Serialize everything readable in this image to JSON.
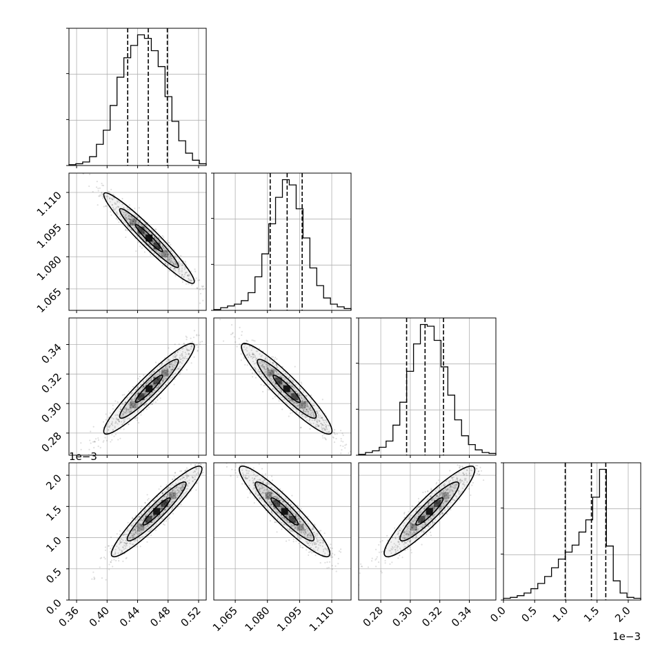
{
  "chart_data": {
    "type": "corner",
    "title": "",
    "parameters": [
      {
        "range": [
          0.35,
          0.53
        ],
        "ticks": [
          0.36,
          0.4,
          0.44,
          0.48,
          0.52
        ],
        "tick_labels": [
          "0.36",
          "0.40",
          "0.44",
          "0.48",
          "0.52"
        ],
        "offset_label": ""
      },
      {
        "range": [
          1.055,
          1.119
        ],
        "ticks": [
          1.065,
          1.08,
          1.095,
          1.11
        ],
        "tick_labels": [
          "1.065",
          "1.080",
          "1.095",
          "1.110"
        ],
        "offset_label": ""
      },
      {
        "range": [
          0.265,
          0.358
        ],
        "ticks": [
          0.28,
          0.3,
          0.32,
          0.34
        ],
        "tick_labels": [
          "0.28",
          "0.30",
          "0.32",
          "0.34"
        ],
        "offset_label": ""
      },
      {
        "range": [
          0.0,
          2.2
        ],
        "ticks": [
          0.0,
          0.5,
          1.0,
          1.5,
          2.0
        ],
        "tick_labels": [
          "0.0",
          "0.5",
          "1.0",
          "1.5",
          "2.0"
        ],
        "offset_label": "1e−3"
      }
    ],
    "marginals": [
      {
        "quantiles": [
          0.427,
          0.454,
          0.479
        ],
        "counts": [
          1,
          2,
          4,
          10,
          24,
          40,
          68,
          100,
          122,
          136,
          148,
          144,
          130,
          112,
          78,
          50,
          28,
          14,
          6,
          2
        ]
      },
      {
        "quantiles": [
          1.0813,
          1.0892,
          1.0962
        ],
        "counts": [
          1,
          3,
          5,
          7,
          11,
          20,
          38,
          64,
          98,
          128,
          148,
          142,
          115,
          82,
          48,
          28,
          14,
          7,
          4,
          2
        ]
      },
      {
        "quantiles": [
          0.2975,
          0.31,
          0.3225
        ],
        "counts": [
          1,
          3,
          5,
          9,
          16,
          34,
          60,
          95,
          126,
          148,
          146,
          130,
          100,
          68,
          40,
          22,
          12,
          6,
          3,
          2
        ]
      },
      {
        "quantiles": [
          0.99,
          1.41,
          1.64
        ],
        "counts": [
          2,
          3,
          5,
          8,
          13,
          19,
          27,
          37,
          47,
          55,
          63,
          78,
          92,
          118,
          150,
          62,
          22,
          8,
          3,
          2
        ]
      }
    ],
    "pairs": [
      {
        "x": 0,
        "y": 1,
        "center": [
          0.455,
          1.0887
        ],
        "rho": -0.96
      },
      {
        "x": 0,
        "y": 2,
        "center": [
          0.455,
          0.31
        ],
        "rho": 0.94
      },
      {
        "x": 1,
        "y": 2,
        "center": [
          1.089,
          0.31
        ],
        "rho": -0.93
      },
      {
        "x": 0,
        "y": 3,
        "center": [
          0.465,
          1.42
        ],
        "rho": 0.94
      },
      {
        "x": 1,
        "y": 3,
        "center": [
          1.088,
          1.42
        ],
        "rho": -0.93
      },
      {
        "x": 2,
        "y": 3,
        "center": [
          0.313,
          1.42
        ],
        "rho": 0.92
      }
    ],
    "grid": true,
    "colors": {
      "line": "#000000",
      "grid": "#b0b0b0",
      "scatter": "#000000",
      "frame": "#000000"
    }
  }
}
